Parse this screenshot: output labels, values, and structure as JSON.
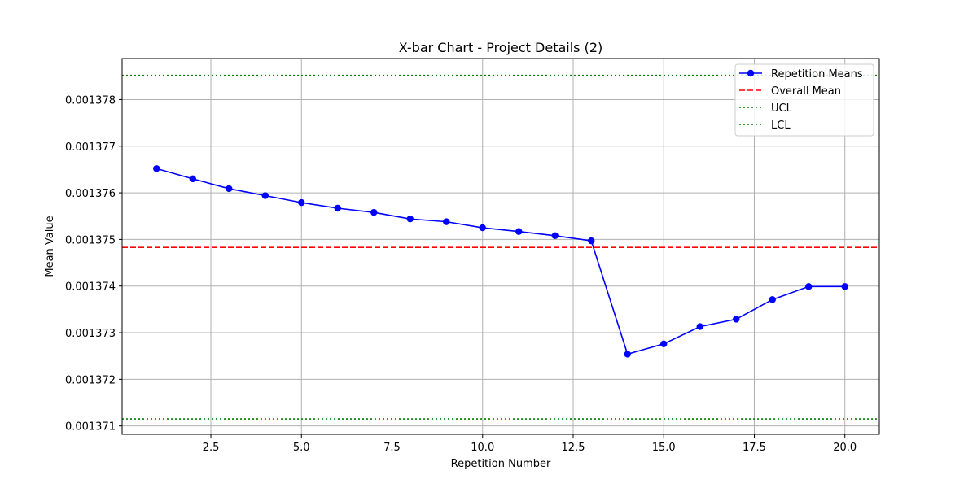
{
  "chart_data": {
    "type": "line",
    "title": "X-bar Chart - Project Details (2)",
    "xlabel": "Repetition Number",
    "ylabel": "Mean Value",
    "xlim": [
      0.05,
      20.95
    ],
    "ylim": [
      0.00137082,
      0.00137888
    ],
    "xticks": [
      2.5,
      5.0,
      7.5,
      10.0,
      12.5,
      15.0,
      17.5,
      20.0
    ],
    "xtick_labels": [
      "2.5",
      "5.0",
      "7.5",
      "10.0",
      "12.5",
      "15.0",
      "17.5",
      "20.0"
    ],
    "yticks": [
      0.001371,
      0.001372,
      0.001373,
      0.001374,
      0.001375,
      0.001376,
      0.001377,
      0.001378
    ],
    "ytick_labels": [
      "0.001371",
      "0.001372",
      "0.001373",
      "0.001374",
      "0.001375",
      "0.001376",
      "0.001377",
      "0.001378"
    ],
    "grid": true,
    "legend_position": "top-right",
    "series": [
      {
        "name": "Repetition Means",
        "color": "#0000ff",
        "style": "solid-with-markers",
        "x": [
          1,
          2,
          3,
          4,
          5,
          6,
          7,
          8,
          9,
          10,
          11,
          12,
          13,
          14,
          15,
          16,
          17,
          18,
          19,
          20
        ],
        "values": [
          0.00137652,
          0.0013763,
          0.00137609,
          0.00137594,
          0.00137579,
          0.00137567,
          0.00137558,
          0.00137544,
          0.00137538,
          0.00137525,
          0.00137517,
          0.00137508,
          0.00137497,
          0.00137254,
          0.00137276,
          0.00137313,
          0.00137329,
          0.00137371,
          0.00137399,
          0.00137399
        ]
      }
    ],
    "reference_lines": [
      {
        "name": "Overall Mean",
        "value": 0.00137483,
        "color": "#ff0000",
        "style": "dashed"
      },
      {
        "name": "UCL",
        "value": 0.00137852,
        "color": "#008000",
        "style": "dotted"
      },
      {
        "name": "LCL",
        "value": 0.00137115,
        "color": "#008000",
        "style": "dotted"
      }
    ]
  }
}
